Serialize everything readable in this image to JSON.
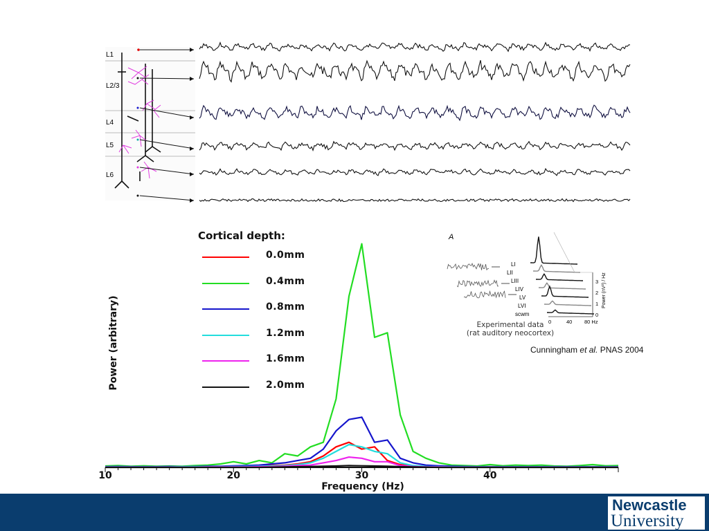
{
  "layers": [
    "L1",
    "L2/3",
    "L4",
    "L5",
    "L6"
  ],
  "chart_data": {
    "type": "line",
    "title": "",
    "legend_title": "Cortical depth:",
    "xlabel": "Frequency (Hz)",
    "ylabel": "Power (arbitrary)",
    "xlim": [
      10,
      50
    ],
    "ylim": [
      0,
      100
    ],
    "xticks": [
      "10",
      "20",
      "30",
      "40"
    ],
    "x": [
      10,
      11,
      12,
      13,
      14,
      15,
      16,
      17,
      18,
      19,
      20,
      21,
      22,
      23,
      24,
      25,
      26,
      27,
      28,
      29,
      30,
      31,
      32,
      33,
      34,
      35,
      36,
      37,
      38,
      39,
      40,
      41,
      42,
      43,
      44,
      45,
      46,
      47,
      48,
      49,
      50
    ],
    "series": [
      {
        "name": "0.0mm",
        "color": "#ff0000",
        "values": [
          0.3,
          0.2,
          0.3,
          0.2,
          0.3,
          0.2,
          0.3,
          0.3,
          0.4,
          0.4,
          0.5,
          0.5,
          0.6,
          0.8,
          1,
          1.5,
          2.5,
          5,
          9,
          11,
          8,
          9,
          3,
          1.2,
          0.5,
          0.4,
          0.3,
          0.2,
          0.3,
          0.2,
          0.3,
          0.2,
          0.2,
          0.2,
          0.2,
          0.2,
          0.2,
          0.2,
          0.2,
          0.2,
          0.2
        ]
      },
      {
        "name": "0.4mm",
        "color": "#22dd22",
        "values": [
          0.6,
          0.8,
          0.5,
          0.7,
          0.5,
          0.6,
          0.5,
          0.8,
          1,
          1.5,
          2.5,
          1.5,
          3,
          2,
          6,
          5,
          9,
          11,
          30,
          75,
          98,
          57,
          59,
          23,
          7,
          4,
          2,
          1,
          0.8,
          0.6,
          1.2,
          0.7,
          1,
          0.8,
          1,
          0.6,
          0.5,
          0.8,
          1.2,
          0.7,
          0.8
        ]
      },
      {
        "name": "0.8mm",
        "color": "#1515cc",
        "values": [
          0.3,
          0.4,
          0.3,
          0.3,
          0.3,
          0.4,
          0.3,
          0.4,
          0.5,
          0.5,
          0.7,
          0.8,
          1,
          1.5,
          2,
          3,
          4,
          8,
          16,
          21,
          22,
          11,
          12,
          4,
          2,
          1,
          0.7,
          0.5,
          0.4,
          0.3,
          0.3,
          0.3,
          0.3,
          0.3,
          0.3,
          0.3,
          0.3,
          0.3,
          0.3,
          0.3,
          0.3
        ]
      },
      {
        "name": "1.2mm",
        "color": "#22dddd",
        "values": [
          0.2,
          0.2,
          0.2,
          0.2,
          0.2,
          0.2,
          0.3,
          0.3,
          0.3,
          0.3,
          0.4,
          0.4,
          0.5,
          0.6,
          0.8,
          1.2,
          2,
          4,
          7,
          10,
          9,
          7,
          6,
          2,
          0.8,
          0.4,
          0.3,
          0.2,
          0.2,
          0.2,
          0.2,
          0.2,
          0.2,
          0.2,
          0.2,
          0.2,
          0.2,
          0.2,
          0.2,
          0.2,
          0.2
        ]
      },
      {
        "name": "1.6mm",
        "color": "#ee22ee",
        "values": [
          0.1,
          0.1,
          0.1,
          0.1,
          0.1,
          0.1,
          0.1,
          0.1,
          0.2,
          0.2,
          0.2,
          0.2,
          0.3,
          0.3,
          0.5,
          0.8,
          1,
          2,
          3,
          4.5,
          4,
          2.5,
          2.5,
          0.8,
          0.4,
          0.2,
          0.2,
          0.1,
          0.1,
          0.1,
          0.1,
          0.1,
          0.1,
          0.1,
          0.1,
          0.1,
          0.1,
          0.1,
          0.1,
          0.1,
          0.1
        ]
      },
      {
        "name": "2.0mm",
        "color": "#111111",
        "values": [
          0,
          0,
          0,
          0,
          0,
          0,
          0,
          0,
          0,
          0,
          0,
          0,
          0,
          0.1,
          0.2,
          0.3,
          0.4,
          0.5,
          0.6,
          0.8,
          0.7,
          0.6,
          0.5,
          0.3,
          0.2,
          0.1,
          0,
          0,
          0,
          0,
          0,
          0,
          0,
          0,
          0,
          0,
          0,
          0,
          0,
          0,
          0
        ]
      }
    ]
  },
  "inset": {
    "panel_letter": "A",
    "labels": [
      "LI",
      "LII",
      "LIII",
      "LIV",
      "LV",
      "LVI",
      "scwm"
    ],
    "x_ticks": [
      "0",
      "40",
      "80 Hz"
    ],
    "y_ticks": [
      "0",
      "1",
      "2",
      "3"
    ],
    "y_label": "Power (nV²) / Hz",
    "caption_line1": "Experimental data",
    "caption_line2": "(rat auditory neocortex)"
  },
  "citation": {
    "author": "Cunningham ",
    "etal": "et al.",
    "rest": " PNAS 2004"
  },
  "logo": {
    "line1": "Newcastle",
    "line2": "University"
  },
  "colors": {
    "footer": "#0a3d6e",
    "trace_dark_blue": "#101040"
  }
}
